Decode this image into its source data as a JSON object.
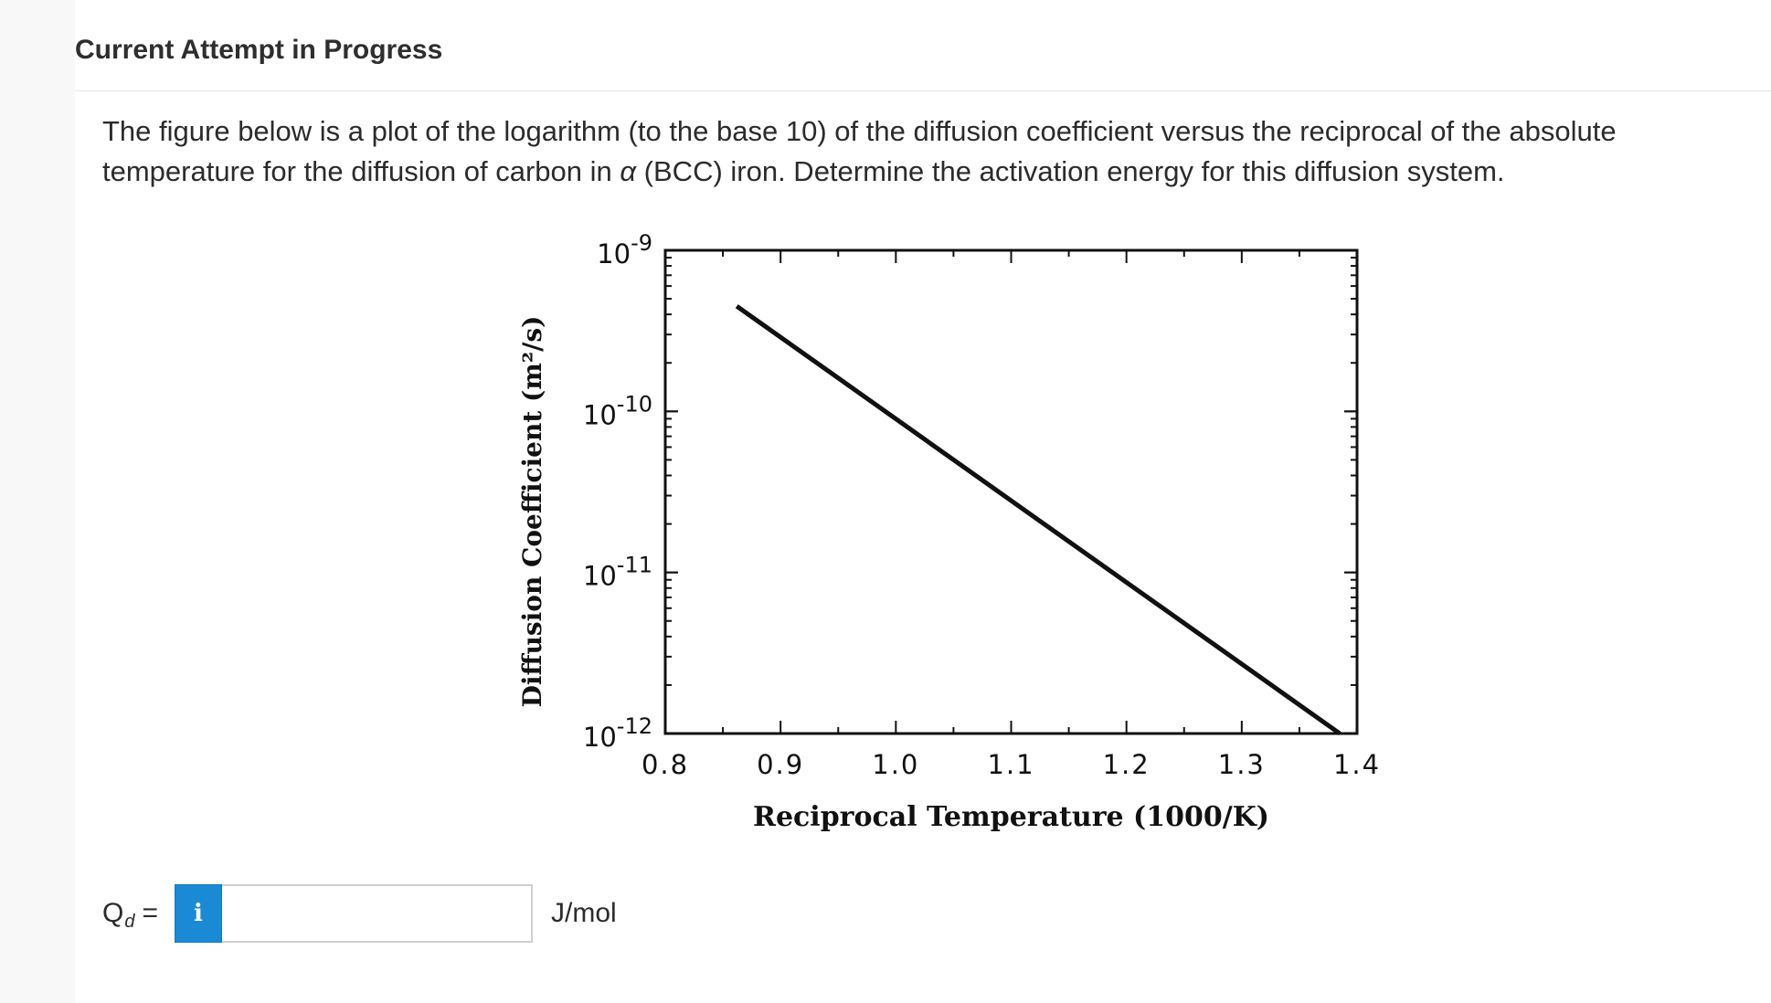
{
  "header": {
    "title": "Current Attempt in Progress"
  },
  "question": {
    "line1": "The figure below is a plot of the logarithm (to the base 10) of the diffusion coefficient versus the reciprocal of the absolute",
    "line2_before": "temperature for the diffusion of carbon in ",
    "alpha": "α",
    "line2_after": " (BCC) iron.  Determine the activation energy for this diffusion system."
  },
  "chart_data": {
    "type": "line",
    "xlabel": "Reciprocal Temperature (1000/K)",
    "ylabel": "Diffusion Coefficient (m²/s)",
    "xlim": [
      0.8,
      1.4
    ],
    "ylim_exponent": [
      -12,
      -9
    ],
    "y_scale": "log",
    "x_ticks": [
      "0.8",
      "0.9",
      "1.0",
      "1.1",
      "1.2",
      "1.3",
      "1.4"
    ],
    "y_ticks": [
      {
        "base": "10",
        "exp": "-9"
      },
      {
        "base": "10",
        "exp": "-10"
      },
      {
        "base": "10",
        "exp": "-11"
      },
      {
        "base": "10",
        "exp": "-12"
      }
    ],
    "series": [
      {
        "x": [
          0.862,
          1.385
        ],
        "y": [
          4.5e-10,
          1e-12
        ]
      }
    ],
    "grid": false
  },
  "answer": {
    "label_main": "Q",
    "label_sub": "d",
    "label_eq": "=",
    "info_icon": "i",
    "value": "",
    "unit": "J/mol"
  }
}
